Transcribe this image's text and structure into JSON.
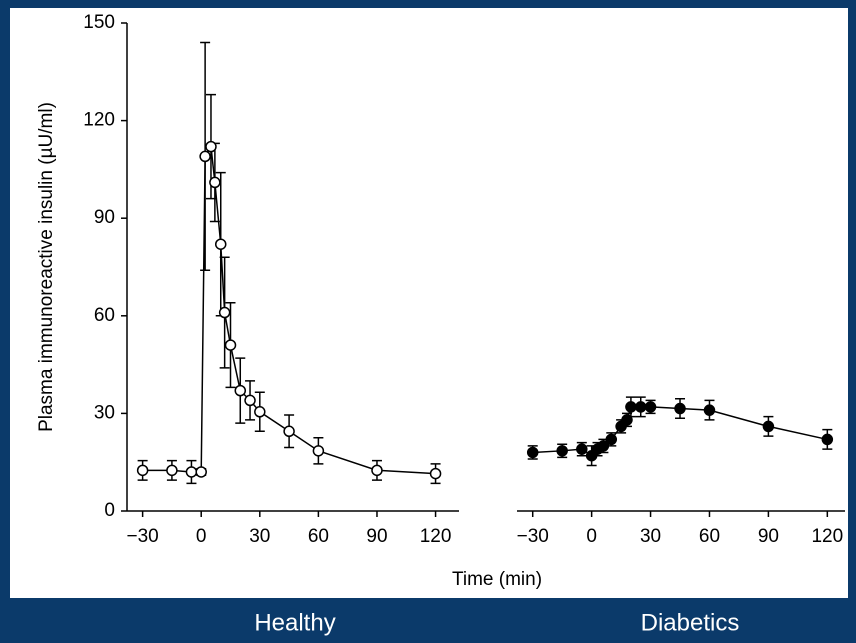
{
  "chart_data": [
    {
      "type": "line",
      "caption": "Healthy",
      "ylabel": "Plasma immunoreactive insulin (µU/ml)",
      "xlabel": "Time (min)",
      "marker": "open",
      "color": "#000000",
      "x": [
        -30,
        -15,
        -5,
        0,
        2,
        5,
        7,
        10,
        12,
        15,
        20,
        25,
        30,
        45,
        60,
        90,
        120
      ],
      "values": [
        12.5,
        12.5,
        12,
        12,
        109,
        112,
        101,
        82,
        61,
        51,
        37,
        34,
        30.5,
        24.5,
        18.5,
        12.5,
        11.5
      ],
      "errors": [
        3,
        3,
        3.5,
        1,
        35,
        16,
        12,
        22,
        17,
        13,
        10,
        6,
        6,
        5,
        4,
        3,
        3
      ],
      "xlim": [
        -38,
        132
      ],
      "ylim": [
        0,
        150
      ],
      "xticks": [
        {
          "value": -30,
          "label": "−30"
        },
        0,
        30,
        60,
        90,
        120
      ],
      "yticks": [
        0,
        30,
        60,
        90,
        120,
        150
      ]
    },
    {
      "type": "line",
      "caption": "Diabetics",
      "marker": "filled",
      "color": "#000000",
      "x": [
        -30,
        -15,
        -5,
        0,
        3,
        6,
        10,
        15,
        18,
        20,
        25,
        30,
        45,
        60,
        90,
        120
      ],
      "values": [
        18,
        18.5,
        19,
        17,
        19,
        20,
        22,
        26,
        28,
        32,
        32,
        32,
        31.5,
        31,
        26,
        22
      ],
      "errors": [
        2,
        2,
        2,
        3,
        2,
        2,
        2,
        2,
        2,
        3,
        3,
        2,
        3,
        3,
        3,
        3
      ],
      "xlim": [
        -38,
        129
      ],
      "ylim": [
        0,
        150
      ],
      "xticks": [
        {
          "value": -30,
          "label": "−30"
        },
        0,
        30,
        60,
        90,
        120
      ]
    }
  ]
}
